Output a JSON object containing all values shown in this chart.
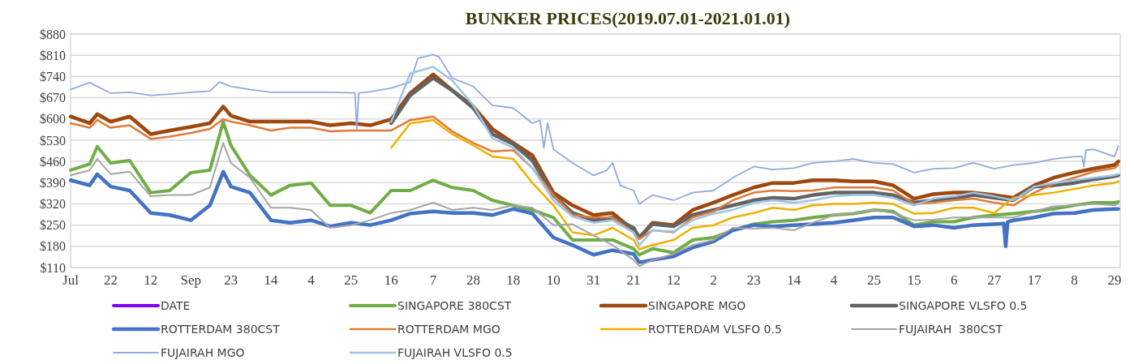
{
  "chart_data": {
    "type": "line",
    "title": "BUNKER PRICES(2019.07.01-2021.01.01)",
    "x": [
      "2019-07-01",
      "2019-07-11",
      "2019-07-15",
      "2019-07-22",
      "2019-08-01",
      "2019-08-12",
      "2019-08-22",
      "2019-09-02",
      "2019-09-12",
      "2019-09-19",
      "2019-09-23",
      "2019-10-03",
      "2019-10-14",
      "2019-10-24",
      "2019-11-04",
      "2019-11-14",
      "2019-11-25",
      "2019-12-05",
      "2019-12-16",
      "2019-12-26",
      "2020-01-07",
      "2020-01-17",
      "2020-01-28",
      "2020-02-07",
      "2020-02-18",
      "2020-02-28",
      "2020-03-10",
      "2020-03-20",
      "2020-03-31",
      "2020-04-10",
      "2020-04-21",
      "2020-04-24",
      "2020-05-01",
      "2020-05-12",
      "2020-05-22",
      "2020-06-02",
      "2020-06-12",
      "2020-06-23",
      "2020-07-03",
      "2020-07-14",
      "2020-07-24",
      "2020-08-04",
      "2020-08-14",
      "2020-08-25",
      "2020-09-04",
      "2020-09-15",
      "2020-09-25",
      "2020-10-06",
      "2020-10-16",
      "2020-10-27",
      "2020-11-06",
      "2020-11-17",
      "2020-11-27",
      "2020-12-08",
      "2020-12-18",
      "2020-12-29",
      "2020-12-31"
    ],
    "series": [
      {
        "name": "DATE",
        "color": "#7f00ff",
        "values": [
          null,
          null,
          null,
          null,
          null,
          null,
          null,
          null,
          null,
          null,
          null,
          null,
          null,
          null,
          null,
          null,
          null,
          null,
          null,
          null,
          null,
          null,
          null,
          null,
          null,
          null,
          null,
          null,
          null,
          null,
          null,
          null,
          null,
          null,
          null,
          null,
          null,
          null,
          null,
          null,
          null,
          null,
          null,
          null,
          null,
          null,
          null,
          null,
          null,
          null,
          null,
          null,
          null,
          null,
          null,
          null,
          null
        ]
      },
      {
        "name": "SINGAPORE 380CST",
        "color": "#70ad47",
        "values": [
          431,
          451,
          509,
          455,
          463,
          357,
          364,
          423,
          431,
          591,
          513,
          414,
          349,
          381,
          389,
          315,
          315,
          290,
          364,
          364,
          398,
          374,
          364,
          332,
          315,
          300,
          275,
          201,
          201,
          201,
          172,
          152,
          172,
          159,
          201,
          209,
          233,
          253,
          261,
          266,
          275,
          283,
          288,
          300,
          295,
          250,
          261,
          261,
          275,
          283,
          288,
          295,
          303,
          315,
          324,
          324,
          327
        ]
      },
      {
        "name": "SINGAPORE MGO",
        "color": "#9e480e",
        "values": [
          608,
          586,
          616,
          591,
          608,
          550,
          562,
          574,
          586,
          641,
          611,
          591,
          591,
          591,
          591,
          579,
          586,
          579,
          599,
          685,
          747,
          694,
          641,
          567,
          521,
          480,
          357,
          315,
          283,
          290,
          233,
          209,
          258,
          250,
          300,
          324,
          349,
          374,
          389,
          389,
          398,
          398,
          394,
          394,
          381,
          337,
          352,
          357,
          357,
          349,
          340,
          381,
          406,
          423,
          436,
          448,
          460
        ]
      },
      {
        "name": "SINGAPORE VLSFO 0.5",
        "color": "#636363",
        "values": [
          null,
          null,
          null,
          null,
          null,
          null,
          null,
          null,
          null,
          null,
          null,
          null,
          null,
          null,
          null,
          null,
          null,
          null,
          586,
          678,
          735,
          694,
          636,
          550,
          517,
          463,
          349,
          290,
          266,
          275,
          241,
          209,
          253,
          246,
          283,
          300,
          315,
          332,
          340,
          337,
          349,
          357,
          357,
          357,
          349,
          324,
          332,
          337,
          349,
          340,
          332,
          377,
          381,
          389,
          401,
          411,
          414
        ]
      },
      {
        "name": "ROTTERDAM 380CST",
        "color": "#4472c4",
        "x": [
          "2019-07-01",
          "2019-07-11",
          "2019-07-15",
          "2019-07-22",
          "2019-08-01",
          "2019-08-12",
          "2019-08-22",
          "2019-09-02",
          "2019-09-12",
          "2019-09-19",
          "2019-09-23",
          "2019-10-03",
          "2019-10-14",
          "2019-10-24",
          "2019-11-04",
          "2019-11-14",
          "2019-11-25",
          "2019-12-05",
          "2019-12-16",
          "2019-12-26",
          "2020-01-07",
          "2020-01-17",
          "2020-01-28",
          "2020-02-07",
          "2020-02-18",
          "2020-02-28",
          "2020-03-10",
          "2020-03-20",
          "2020-03-31",
          "2020-04-10",
          "2020-04-21",
          "2020-04-24",
          "2020-05-01",
          "2020-05-12",
          "2020-05-22",
          "2020-06-02",
          "2020-06-12",
          "2020-06-23",
          "2020-07-03",
          "2020-07-14",
          "2020-07-24",
          "2020-08-04",
          "2020-08-14",
          "2020-08-25",
          "2020-09-04",
          "2020-09-15",
          "2020-09-25",
          "2020-10-06",
          "2020-10-16",
          "2020-10-27",
          "2020-11-01",
          "2020-11-02",
          "2020-11-03",
          "2020-11-06",
          "2020-11-17",
          "2020-11-27",
          "2020-12-08",
          "2020-12-18",
          "2020-12-29",
          "2020-12-31"
        ],
        "values": [
          398,
          381,
          418,
          377,
          364,
          290,
          283,
          266,
          315,
          426,
          377,
          357,
          266,
          258,
          266,
          246,
          258,
          250,
          266,
          288,
          295,
          290,
          290,
          283,
          303,
          288,
          209,
          184,
          152,
          167,
          155,
          127,
          135,
          147,
          176,
          196,
          233,
          250,
          246,
          250,
          253,
          258,
          266,
          275,
          275,
          246,
          250,
          241,
          250,
          253,
          255,
          180,
          260,
          266,
          275,
          288,
          290,
          300,
          303,
          303
        ]
      },
      {
        "name": "ROTTERDAM MGO",
        "color": "#e07b39",
        "values": [
          586,
          571,
          596,
          571,
          579,
          534,
          542,
          554,
          567,
          599,
          591,
          579,
          562,
          571,
          571,
          559,
          562,
          562,
          562,
          596,
          608,
          559,
          521,
          493,
          497,
          438,
          349,
          283,
          275,
          275,
          226,
          204,
          233,
          226,
          275,
          295,
          332,
          357,
          364,
          362,
          364,
          374,
          374,
          374,
          364,
          320,
          324,
          332,
          337,
          324,
          315,
          357,
          386,
          406,
          426,
          438,
          448
        ]
      },
      {
        "name": "ROTTERDAM VLSFO 0.5",
        "color": "#f0b000",
        "values": [
          null,
          null,
          null,
          null,
          null,
          null,
          null,
          null,
          null,
          null,
          null,
          null,
          null,
          null,
          null,
          null,
          null,
          null,
          505,
          586,
          596,
          550,
          513,
          476,
          468,
          389,
          315,
          226,
          216,
          241,
          201,
          170,
          184,
          201,
          241,
          250,
          275,
          290,
          307,
          300,
          315,
          320,
          320,
          324,
          320,
          288,
          290,
          307,
          307,
          290,
          340,
          349,
          357,
          369,
          381,
          389,
          394
        ]
      },
      {
        "name": "FUJAIRAH  380CST",
        "color": "#a5a5a5",
        "values": [
          414,
          431,
          468,
          418,
          426,
          345,
          349,
          349,
          374,
          521,
          455,
          406,
          307,
          307,
          300,
          241,
          250,
          266,
          290,
          300,
          324,
          300,
          307,
          300,
          315,
          307,
          250,
          253,
          216,
          184,
          135,
          115,
          135,
          155,
          184,
          201,
          241,
          238,
          241,
          233,
          258,
          283,
          290,
          300,
          290,
          266,
          268,
          275,
          275,
          275,
          275,
          295,
          312,
          315,
          320,
          315,
          320
        ]
      },
      {
        "name": "FUJAIRAH MGO",
        "color": "#8faadc",
        "x": [
          "2019-07-01",
          "2019-07-11",
          "2019-07-22",
          "2019-08-01",
          "2019-08-12",
          "2019-08-22",
          "2019-09-02",
          "2019-09-12",
          "2019-09-17",
          "2019-09-23",
          "2019-10-03",
          "2019-10-14",
          "2019-10-24",
          "2019-11-04",
          "2019-11-14",
          "2019-11-27",
          "2019-11-28",
          "2019-11-29",
          "2019-12-05",
          "2019-12-16",
          "2019-12-26",
          "2019-12-30",
          "2020-01-07",
          "2020-01-10",
          "2020-01-17",
          "2020-01-28",
          "2020-02-07",
          "2020-02-18",
          "2020-02-28",
          "2020-03-03",
          "2020-03-05",
          "2020-03-07",
          "2020-03-10",
          "2020-03-20",
          "2020-03-31",
          "2020-04-07",
          "2020-04-10",
          "2020-04-14",
          "2020-04-21",
          "2020-04-24",
          "2020-05-01",
          "2020-05-12",
          "2020-05-22",
          "2020-06-02",
          "2020-06-12",
          "2020-06-23",
          "2020-07-03",
          "2020-07-14",
          "2020-07-24",
          "2020-08-04",
          "2020-08-14",
          "2020-08-25",
          "2020-09-04",
          "2020-09-15",
          "2020-09-25",
          "2020-10-06",
          "2020-10-16",
          "2020-10-27",
          "2020-11-06",
          "2020-11-17",
          "2020-11-27",
          "2020-12-08",
          "2020-12-12",
          "2020-12-13",
          "2020-12-14",
          "2020-12-18",
          "2020-12-29",
          "2020-12-31"
        ],
        "values": [
          697,
          720,
          685,
          688,
          678,
          682,
          688,
          692,
          722,
          707,
          697,
          688,
          688,
          688,
          688,
          686,
          566,
          686,
          690,
          702,
          722,
          800,
          812,
          805,
          735,
          707,
          645,
          636,
          586,
          596,
          505,
          587,
          500,
          455,
          414,
          431,
          455,
          381,
          364,
          320,
          349,
          332,
          357,
          364,
          406,
          443,
          433,
          438,
          455,
          460,
          468,
          455,
          451,
          423,
          436,
          438,
          455,
          436,
          448,
          455,
          468,
          476,
          476,
          443,
          497,
          500,
          476,
          510
        ]
      },
      {
        "name": "FUJAIRAH VLSFO 0.5",
        "color": "#9dc3e6",
        "values": [
          null,
          null,
          null,
          null,
          null,
          null,
          null,
          null,
          null,
          null,
          null,
          null,
          null,
          null,
          null,
          null,
          null,
          null,
          591,
          750,
          772,
          727,
          645,
          537,
          505,
          438,
          332,
          278,
          258,
          266,
          226,
          184,
          233,
          229,
          266,
          288,
          300,
          324,
          332,
          324,
          332,
          345,
          349,
          349,
          340,
          315,
          337,
          345,
          357,
          345,
          332,
          377,
          389,
          398,
          406,
          414,
          418
        ]
      }
    ],
    "xlim": [
      "2019-07-01",
      "2021-01-01"
    ],
    "xticks": [
      {
        "value": "2019-07-01",
        "label": "Jul"
      },
      {
        "value": "2019-07-22",
        "label": "22"
      },
      {
        "value": "2019-08-12",
        "label": "12"
      },
      {
        "value": "2019-09-02",
        "label": "Sep"
      },
      {
        "value": "2019-09-23",
        "label": "23"
      },
      {
        "value": "2019-10-14",
        "label": "14"
      },
      {
        "value": "2019-11-04",
        "label": "4"
      },
      {
        "value": "2019-11-25",
        "label": "25"
      },
      {
        "value": "2019-12-16",
        "label": "16"
      },
      {
        "value": "2020-01-07",
        "label": "7"
      },
      {
        "value": "2020-01-28",
        "label": "28"
      },
      {
        "value": "2020-02-18",
        "label": "18"
      },
      {
        "value": "2020-03-10",
        "label": "10"
      },
      {
        "value": "2020-03-31",
        "label": "31"
      },
      {
        "value": "2020-04-21",
        "label": "21"
      },
      {
        "value": "2020-05-12",
        "label": "12"
      },
      {
        "value": "2020-06-02",
        "label": "2"
      },
      {
        "value": "2020-06-23",
        "label": "23"
      },
      {
        "value": "2020-07-14",
        "label": "14"
      },
      {
        "value": "2020-08-04",
        "label": "4"
      },
      {
        "value": "2020-08-25",
        "label": "25"
      },
      {
        "value": "2020-09-15",
        "label": "15"
      },
      {
        "value": "2020-10-06",
        "label": "6"
      },
      {
        "value": "2020-10-27",
        "label": "27"
      },
      {
        "value": "2020-11-17",
        "label": "17"
      },
      {
        "value": "2020-12-08",
        "label": "8"
      },
      {
        "value": "2020-12-29",
        "label": "29"
      }
    ],
    "ylim": [
      110,
      880
    ],
    "yticks": [
      {
        "value": 110,
        "label": "$110"
      },
      {
        "value": 180,
        "label": "$180"
      },
      {
        "value": 250,
        "label": "$250"
      },
      {
        "value": 320,
        "label": "$320"
      },
      {
        "value": 390,
        "label": "$390"
      },
      {
        "value": 460,
        "label": "$460"
      },
      {
        "value": 530,
        "label": "$530"
      },
      {
        "value": 600,
        "label": "$600"
      },
      {
        "value": 670,
        "label": "$670"
      },
      {
        "value": 740,
        "label": "$740"
      },
      {
        "value": 810,
        "label": "$810"
      },
      {
        "value": 880,
        "label": "$880"
      }
    ],
    "grid": "y",
    "legend": "bottom",
    "marker": "none",
    "line_style": "solid"
  }
}
